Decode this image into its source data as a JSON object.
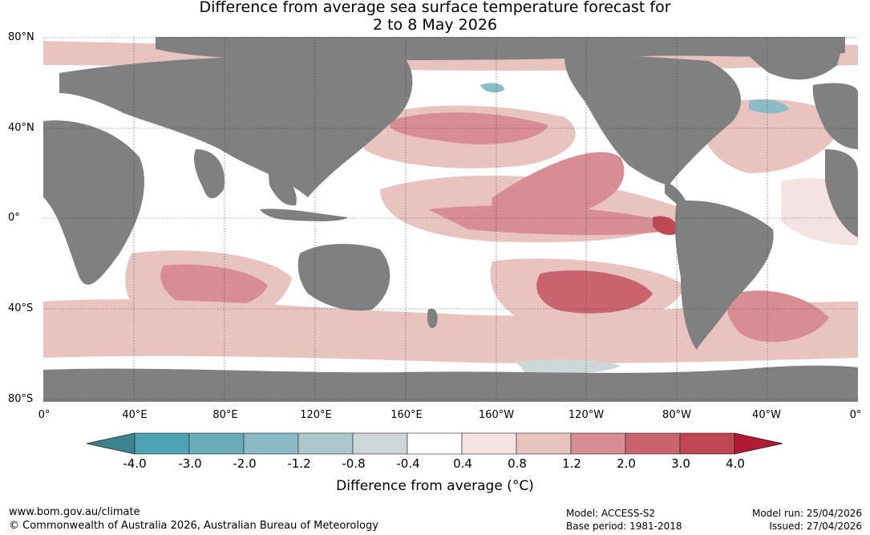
{
  "title": {
    "line1": "Difference from average sea surface temperature forecast for",
    "line2": "2 to 8 May 2026"
  },
  "lat_labels": [
    "80°N",
    "40°N",
    "0°",
    "40°S",
    "80°S"
  ],
  "lon_labels": [
    "0°",
    "40°E",
    "80°E",
    "120°E",
    "160°E",
    "160°W",
    "120°W",
    "80°W",
    "40°W",
    "0°"
  ],
  "colorbar": {
    "title": "Difference from average (",
    "title_unit": "°C)",
    "tick_labels": [
      "-4.0",
      "-3.0",
      "-2.0",
      "-1.2",
      "-0.8",
      "-0.4",
      "0.4",
      "0.8",
      "1.2",
      "2.0",
      "3.0",
      "4.0"
    ],
    "colors": [
      "#3e8490",
      "#4da3b3",
      "#6aadba",
      "#8cbac6",
      "#adc8cd",
      "#cdd7d8",
      "#ffffff",
      "#f5e3e1",
      "#e8c3c0",
      "#d78d93",
      "#c9646f",
      "#bf4653",
      "#b11b36"
    ]
  },
  "map": {
    "ocean_color": "#ffffff",
    "land_color": "#808080",
    "grid_color": "#444444"
  },
  "footer": {
    "website": "www.bom.gov.au/climate",
    "copyright": "© Commonwealth of Australia 2026, Australian Bureau of Meteorology",
    "model": "Model: ACCESS-S2",
    "base_period": "Base period: 1981-2018",
    "model_run": "Model run: 25/04/2026",
    "issued": "Issued: 27/04/2026"
  }
}
